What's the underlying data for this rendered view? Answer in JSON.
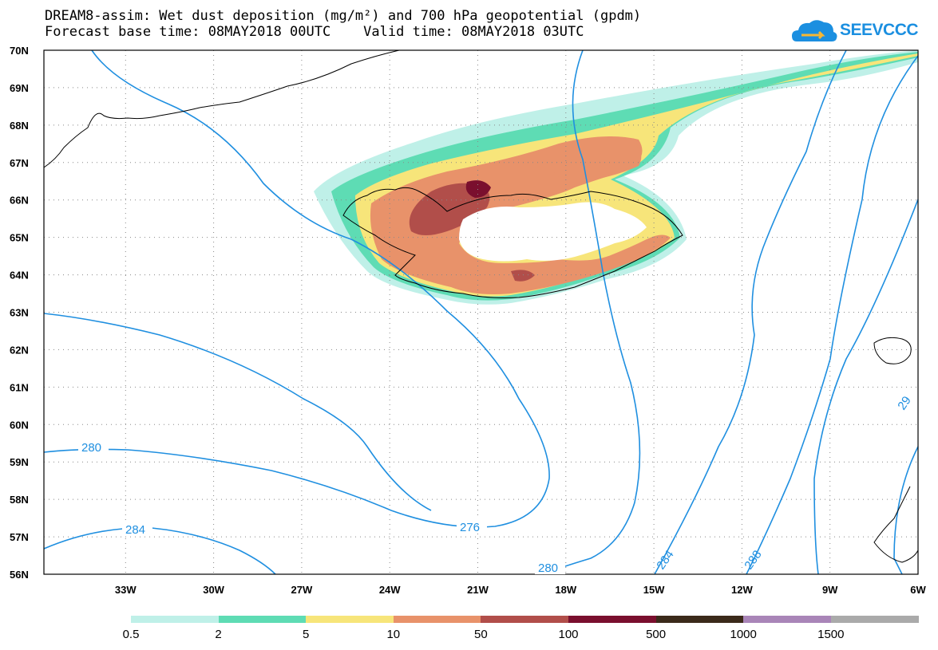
{
  "header": {
    "line1": "DREAM8-assim: Wet dust deposition (mg/m²) and 700 hPa geopotential (gpdm)",
    "line2": "Forecast base time: 08MAY2018 00UTC    Valid time: 08MAY2018 03UTC"
  },
  "logo": {
    "text": "SEEVCCC",
    "icon": "cloud-logo-icon"
  },
  "map": {
    "lat_labels": [
      "70N",
      "69N",
      "68N",
      "67N",
      "66N",
      "65N",
      "64N",
      "63N",
      "62N",
      "61N",
      "60N",
      "59N",
      "58N",
      "57N",
      "56N"
    ],
    "lon_labels": [
      "33W",
      "30W",
      "27W",
      "24W",
      "21W",
      "18W",
      "15W",
      "12W",
      "9W",
      "6W"
    ],
    "contour_labels": {
      "c280_left": "280",
      "c284_left": "284",
      "c276": "276",
      "c280_bottom": "280",
      "c284_right": "284",
      "c288": "288",
      "c29_edge": "29"
    }
  },
  "legend": {
    "labels": [
      "0.5",
      "2",
      "5",
      "10",
      "50",
      "100",
      "500",
      "1000",
      "1500"
    ],
    "colors": [
      "#bff0e8",
      "#5edcb4",
      "#f7e57a",
      "#e8926a",
      "#b14e4a",
      "#7a0f2e",
      "#3b2a1a",
      "#a985b8",
      "#aaaaaa"
    ]
  }
}
